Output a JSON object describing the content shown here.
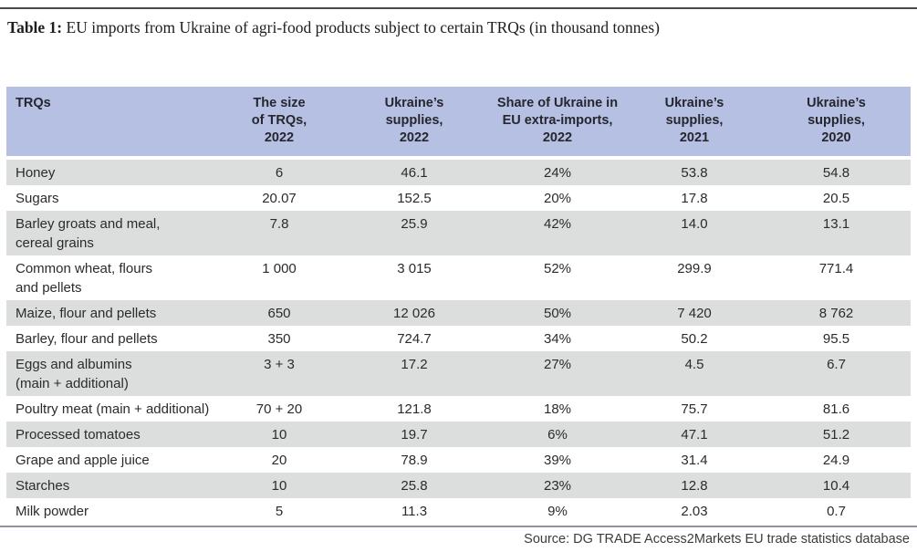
{
  "caption": {
    "label": "Table 1:",
    "text": " EU imports from Ukraine of agri-food products subject to certain TRQs (in thousand tonnes)"
  },
  "source": "Source: DG TRADE Access2Markets EU trade statistics database",
  "colors": {
    "header_bg": "#b5c0e2",
    "row_alt_bg": "#dcdddd",
    "header_text": "#26262e",
    "body_text": "#2b2b2b",
    "top_rule": "#494949",
    "bottom_rule": "#8f949b"
  },
  "table": {
    "columns": [
      {
        "label": "TRQs"
      },
      {
        "label": "The size\nof TRQs,\n2022"
      },
      {
        "label": "Ukraine’s\nsupplies,\n2022"
      },
      {
        "label": "Share of Ukraine in\nEU extra-imports,\n2022"
      },
      {
        "label": "Ukraine’s\nsupplies,\n2021"
      },
      {
        "label": "Ukraine’s\nsupplies,\n2020"
      }
    ],
    "rows": [
      {
        "cells": [
          "Honey",
          "6",
          "46.1",
          "24%",
          "53.8",
          "54.8"
        ]
      },
      {
        "cells": [
          "Sugars",
          "20.07",
          "152.5",
          "20%",
          "17.8",
          "20.5"
        ]
      },
      {
        "cells": [
          "Barley groats and meal,\ncereal grains",
          "7.8",
          "25.9",
          "42%",
          "14.0",
          "13.1"
        ]
      },
      {
        "cells": [
          "Common wheat, flours\nand pellets",
          "1 000",
          "3 015",
          "52%",
          "299.9",
          "771.4"
        ]
      },
      {
        "cells": [
          "Maize, flour and pellets",
          "650",
          "12 026",
          "50%",
          "7 420",
          "8 762"
        ]
      },
      {
        "cells": [
          "Barley, flour and pellets",
          "350",
          "724.7",
          "34%",
          "50.2",
          "95.5"
        ]
      },
      {
        "cells": [
          "Eggs and albumins\n(main + additional)",
          "3 + 3",
          "17.2",
          "27%",
          "4.5",
          "6.7"
        ]
      },
      {
        "cells": [
          "Poultry meat (main + additional)",
          "70 + 20",
          "121.8",
          "18%",
          "75.7",
          "81.6"
        ]
      },
      {
        "cells": [
          "Processed tomatoes",
          "10",
          "19.7",
          "6%",
          "47.1",
          "51.2"
        ]
      },
      {
        "cells": [
          "Grape and apple juice",
          "20",
          "78.9",
          "39%",
          "31.4",
          "24.9"
        ]
      },
      {
        "cells": [
          "Starches",
          "10",
          "25.8",
          "23%",
          "12.8",
          "10.4"
        ]
      },
      {
        "cells": [
          "Milk powder",
          "5",
          "11.3",
          "9%",
          "2.03",
          "0.7"
        ]
      }
    ]
  }
}
